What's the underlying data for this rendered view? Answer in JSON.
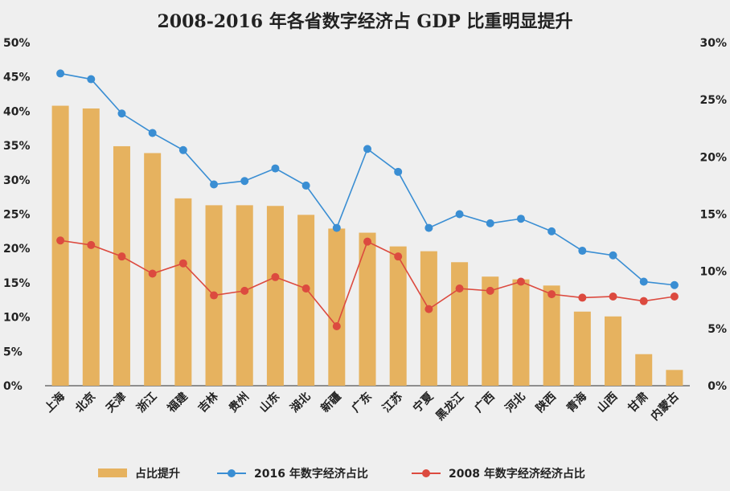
{
  "chart_data": {
    "type": "bar",
    "title": "2008-2016 年各省数字经济占 GDP 比重明显提升",
    "categories": [
      "上海",
      "北京",
      "天津",
      "浙江",
      "福建",
      "吉林",
      "贵州",
      "山东",
      "湖北",
      "新疆",
      "广东",
      "江苏",
      "宁夏",
      "黑龙江",
      "广西",
      "河北",
      "陕西",
      "青海",
      "山西",
      "甘肃",
      "内蒙古"
    ],
    "left_axis": {
      "ylim": [
        0,
        50
      ],
      "ticks": [
        0,
        5,
        10,
        15,
        20,
        25,
        30,
        35,
        40,
        45,
        50
      ],
      "tick_labels": [
        "0%",
        "5%",
        "10%",
        "15%",
        "20%",
        "25%",
        "30%",
        "35%",
        "40%",
        "45%",
        "50%"
      ]
    },
    "right_axis": {
      "ylim": [
        0,
        30
      ],
      "ticks": [
        0,
        5,
        10,
        15,
        20,
        25,
        30
      ],
      "tick_labels": [
        "0%",
        "5%",
        "10%",
        "15%",
        "20%",
        "25%",
        "30%"
      ]
    },
    "series": [
      {
        "name": "占比提升",
        "type": "bar",
        "axis": "left",
        "color": "#e6b25f",
        "values": [
          40.8,
          40.4,
          34.9,
          33.9,
          27.3,
          26.3,
          26.3,
          26.2,
          24.9,
          22.9,
          22.3,
          20.3,
          19.6,
          18.0,
          15.9,
          15.5,
          14.6,
          10.8,
          10.1,
          4.6,
          2.3
        ]
      },
      {
        "name": "2016 年数字经济占比",
        "type": "line",
        "axis": "right",
        "color": "#3a8ed3",
        "values": [
          27.3,
          26.8,
          23.8,
          22.1,
          20.6,
          17.6,
          17.9,
          19.0,
          17.5,
          13.8,
          20.7,
          18.7,
          13.8,
          15.0,
          14.2,
          14.6,
          13.5,
          11.8,
          11.4,
          9.1,
          8.8
        ]
      },
      {
        "name": "2008 年数字经济经济占比",
        "type": "line",
        "axis": "right",
        "color": "#dc4a3f",
        "values": [
          12.7,
          12.3,
          11.3,
          9.8,
          10.7,
          7.9,
          8.3,
          9.5,
          8.5,
          5.2,
          12.6,
          11.3,
          6.7,
          8.5,
          8.3,
          9.1,
          8.0,
          7.7,
          7.8,
          7.4,
          7.8
        ]
      }
    ]
  }
}
